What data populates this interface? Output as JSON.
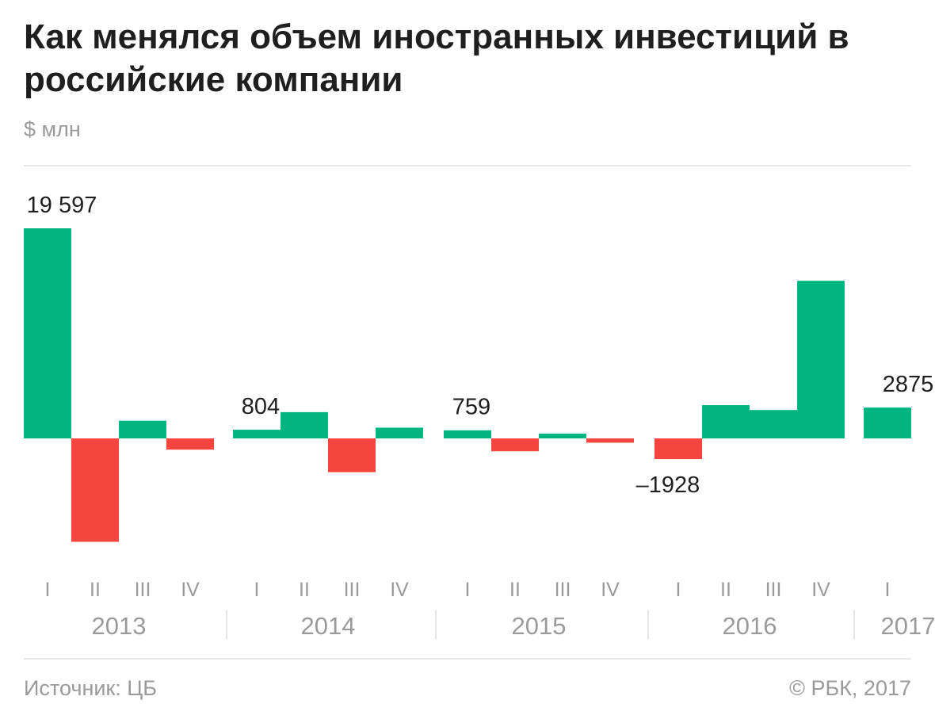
{
  "header": {
    "title": "Как менялся объем иностранных инвестиций в российские компании",
    "unit": "$ млн"
  },
  "footer": {
    "source": "Источник: ЦБ",
    "copyright": "© РБК, 2017"
  },
  "chart_data": {
    "type": "bar",
    "title": "Как менялся объем иностранных инвестиций в российские компании",
    "ylabel": "$ млн",
    "xlabel": "",
    "grid": false,
    "legend": "none",
    "ylim": [
      -10500,
      19600
    ],
    "colors": {
      "positive": "#00b57f",
      "negative": "#f5453e"
    },
    "x": [
      {
        "year": "2013",
        "quarter": "I",
        "value": 19597,
        "label": "19 597"
      },
      {
        "year": "2013",
        "quarter": "II",
        "value": -9650,
        "label": ""
      },
      {
        "year": "2013",
        "quarter": "III",
        "value": 1650,
        "label": ""
      },
      {
        "year": "2013",
        "quarter": "IV",
        "value": -1050,
        "label": ""
      },
      {
        "year": "2014",
        "quarter": "I",
        "value": 804,
        "label": "804"
      },
      {
        "year": "2014",
        "quarter": "II",
        "value": 2450,
        "label": ""
      },
      {
        "year": "2014",
        "quarter": "III",
        "value": -3150,
        "label": ""
      },
      {
        "year": "2014",
        "quarter": "IV",
        "value": 1000,
        "label": ""
      },
      {
        "year": "2015",
        "quarter": "I",
        "value": 759,
        "label": "759"
      },
      {
        "year": "2015",
        "quarter": "II",
        "value": -1200,
        "label": ""
      },
      {
        "year": "2015",
        "quarter": "III",
        "value": 450,
        "label": ""
      },
      {
        "year": "2015",
        "quarter": "IV",
        "value": -400,
        "label": ""
      },
      {
        "year": "2016",
        "quarter": "I",
        "value": -1928,
        "label": "–1928"
      },
      {
        "year": "2016",
        "quarter": "II",
        "value": 3100,
        "label": ""
      },
      {
        "year": "2016",
        "quarter": "III",
        "value": 2650,
        "label": ""
      },
      {
        "year": "2016",
        "quarter": "IV",
        "value": 14700,
        "label": ""
      },
      {
        "year": "2017",
        "quarter": "I",
        "value": 2875,
        "label": "2875"
      }
    ],
    "years": [
      "2013",
      "2014",
      "2015",
      "2016",
      "2017"
    ]
  }
}
